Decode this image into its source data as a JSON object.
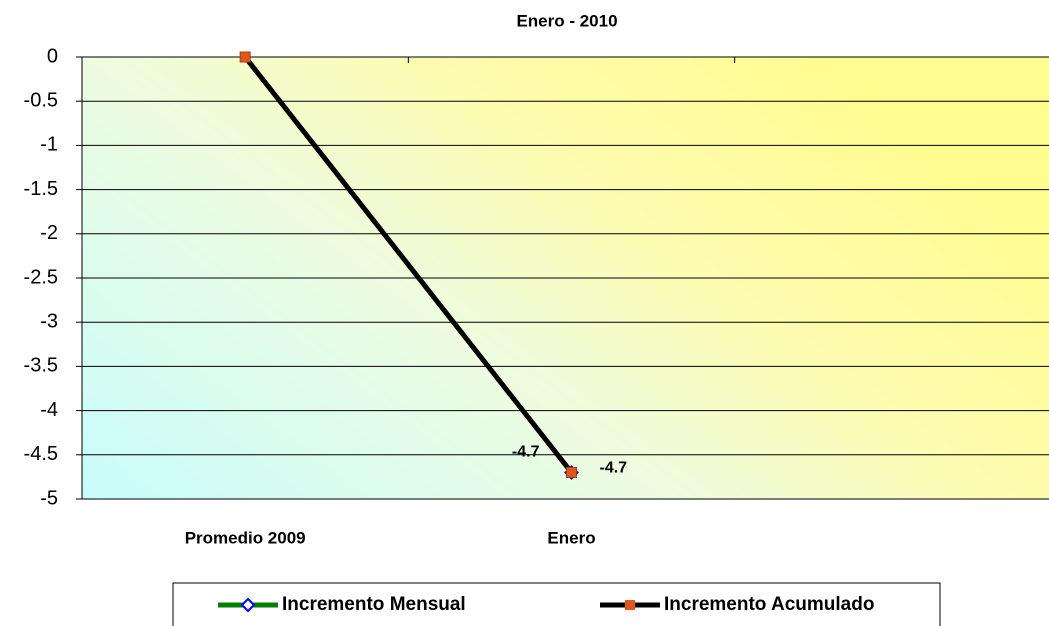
{
  "chart_data": {
    "type": "line",
    "title": "Enero - 2010",
    "categories": [
      "Promedio 2009",
      "Enero",
      null
    ],
    "series": [
      {
        "name": "Incremento Mensual",
        "color": "#008000",
        "marker": "diamond",
        "marker_color": "#0000ff",
        "values": [
          null,
          -4.7,
          null
        ],
        "labeled": [
          false,
          true,
          false
        ],
        "label_side": "left"
      },
      {
        "name": "Incremento Acumulado",
        "color": "#000000",
        "marker": "square",
        "marker_color": "#e0561c",
        "values": [
          0,
          -4.7,
          null
        ],
        "labeled": [
          false,
          true,
          false
        ],
        "label_side": "right"
      }
    ],
    "ylim": [
      -5,
      0
    ],
    "yticks": [
      0,
      -0.5,
      -1,
      -1.5,
      -2,
      -2.5,
      -3,
      -3.5,
      -4,
      -4.5,
      -5
    ],
    "grid": true,
    "legend": "bottom"
  }
}
